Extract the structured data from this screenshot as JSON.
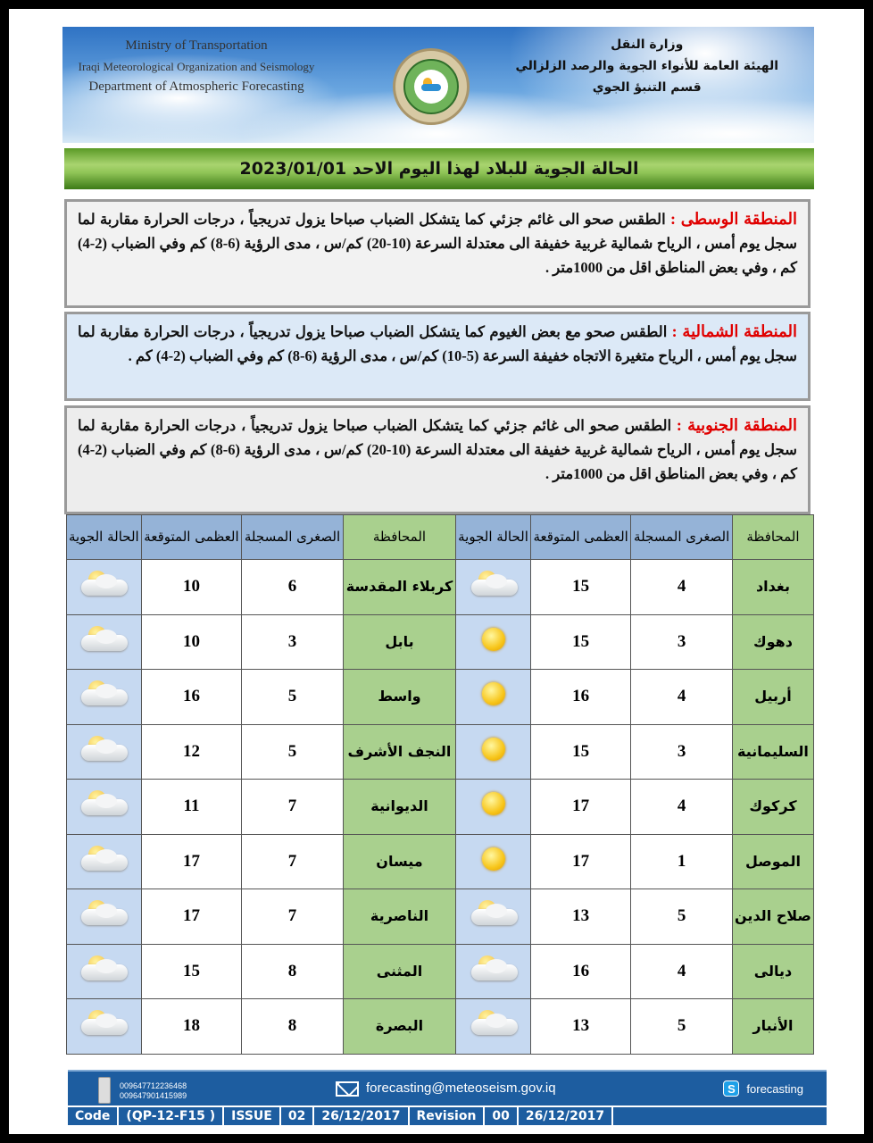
{
  "header": {
    "en_lines": [
      "Ministry of Transportation",
      "Iraqi Meteorological Organization and Seismology",
      "Department of Atmospheric Forecasting"
    ],
    "ar_lines": [
      "وزارة النقل",
      "الهيئة العامة للأنواء الجوية والرصد الزلزالي",
      "قسم التنبؤ الجوي"
    ],
    "title": "الحالة الجوية للبلاد لهذا اليوم الاحد 2023/01/01"
  },
  "regions": [
    {
      "name": "المنطقة الوسطى :",
      "text": " الطقس صحو الى غائم جزئي كما يتشكل الضباب صباحا يزول تدريجياً ، درجات الحرارة مقاربة لما سجل يوم أمس ، الرياح شمالية غربية خفيفة الى معتدلة السرعة (10-20) كم/س ، مدى الرؤية (6-8) كم وفي الضباب (2-4) كم ، وفي بعض المناطق اقل من 1000متر ."
    },
    {
      "name": "المنطقة الشمالية :",
      "text": " الطقس صحو مع بعض الغيوم كما يتشكل الضباب صباحا يزول تدريجياً ، درجات الحرارة مقاربة لما سجل يوم أمس ، الرياح متغيرة الاتجاه خفيفة السرعة (5-10) كم/س ، مدى الرؤية (6-8) كم وفي الضباب (2-4) كم ."
    },
    {
      "name": "المنطقة الجنوبية :",
      "text": " الطقس صحو الى غائم جزئي كما يتشكل الضباب صباحا يزول تدريجياً ، درجات الحرارة مقاربة لما سجل يوم أمس ، الرياح شمالية غربية خفيفة الى معتدلة السرعة (10-20) كم/س ، مدى الرؤية (6-8) كم وفي الضباب (2-4) كم ، وفي بعض المناطق اقل من 1000متر ."
    }
  ],
  "table": {
    "headers": [
      "المحافظة",
      "الصغرى المسجلة",
      "العظمى المتوقعة",
      "الحالة الجوية"
    ],
    "rows": [
      [
        {
          "p": "بغداد",
          "min": "4",
          "max": "15",
          "c": "partly-cloudy"
        },
        {
          "p": "كربلاء المقدسة",
          "min": "6",
          "max": "10",
          "c": "partly-cloudy"
        }
      ],
      [
        {
          "p": "دهوك",
          "min": "3",
          "max": "15",
          "c": "sunny"
        },
        {
          "p": "بابل",
          "min": "3",
          "max": "10",
          "c": "partly-cloudy"
        }
      ],
      [
        {
          "p": "أربيل",
          "min": "4",
          "max": "16",
          "c": "sunny"
        },
        {
          "p": "واسط",
          "min": "5",
          "max": "16",
          "c": "partly-cloudy"
        }
      ],
      [
        {
          "p": "السليمانية",
          "min": "3",
          "max": "15",
          "c": "sunny"
        },
        {
          "p": "النجف الأشرف",
          "min": "5",
          "max": "12",
          "c": "partly-cloudy"
        }
      ],
      [
        {
          "p": "كركوك",
          "min": "4",
          "max": "17",
          "c": "sunny"
        },
        {
          "p": "الديوانية",
          "min": "7",
          "max": "11",
          "c": "partly-cloudy"
        }
      ],
      [
        {
          "p": "الموصل",
          "min": "1",
          "max": "17",
          "c": "sunny"
        },
        {
          "p": "ميسان",
          "min": "7",
          "max": "17",
          "c": "partly-cloudy"
        }
      ],
      [
        {
          "p": "صلاح الدين",
          "min": "5",
          "max": "13",
          "c": "partly-cloudy"
        },
        {
          "p": "الناصرية",
          "min": "7",
          "max": "17",
          "c": "partly-cloudy"
        }
      ],
      [
        {
          "p": "ديالى",
          "min": "4",
          "max": "16",
          "c": "partly-cloudy"
        },
        {
          "p": "المثنى",
          "min": "8",
          "max": "15",
          "c": "partly-cloudy"
        }
      ],
      [
        {
          "p": "الأنبار",
          "min": "5",
          "max": "13",
          "c": "partly-cloudy"
        },
        {
          "p": "البصرة",
          "min": "8",
          "max": "18",
          "c": "partly-cloudy"
        }
      ]
    ]
  },
  "footer": {
    "phones": [
      "009647712236468",
      "009647901415989"
    ],
    "email": "forecasting@meteoseism.gov.iq",
    "skype": "forecasting",
    "code_cells": [
      "Code",
      "(QP-12-F15 )",
      "ISSUE",
      "02",
      "26/12/2017",
      "Revision",
      "00",
      "26/12/2017"
    ]
  },
  "colors": {
    "province": "#a9d08e",
    "header": "#95b3d7",
    "condition": "#c6d9f1",
    "region_name": "#e00000",
    "footer": "#1d5da0"
  }
}
